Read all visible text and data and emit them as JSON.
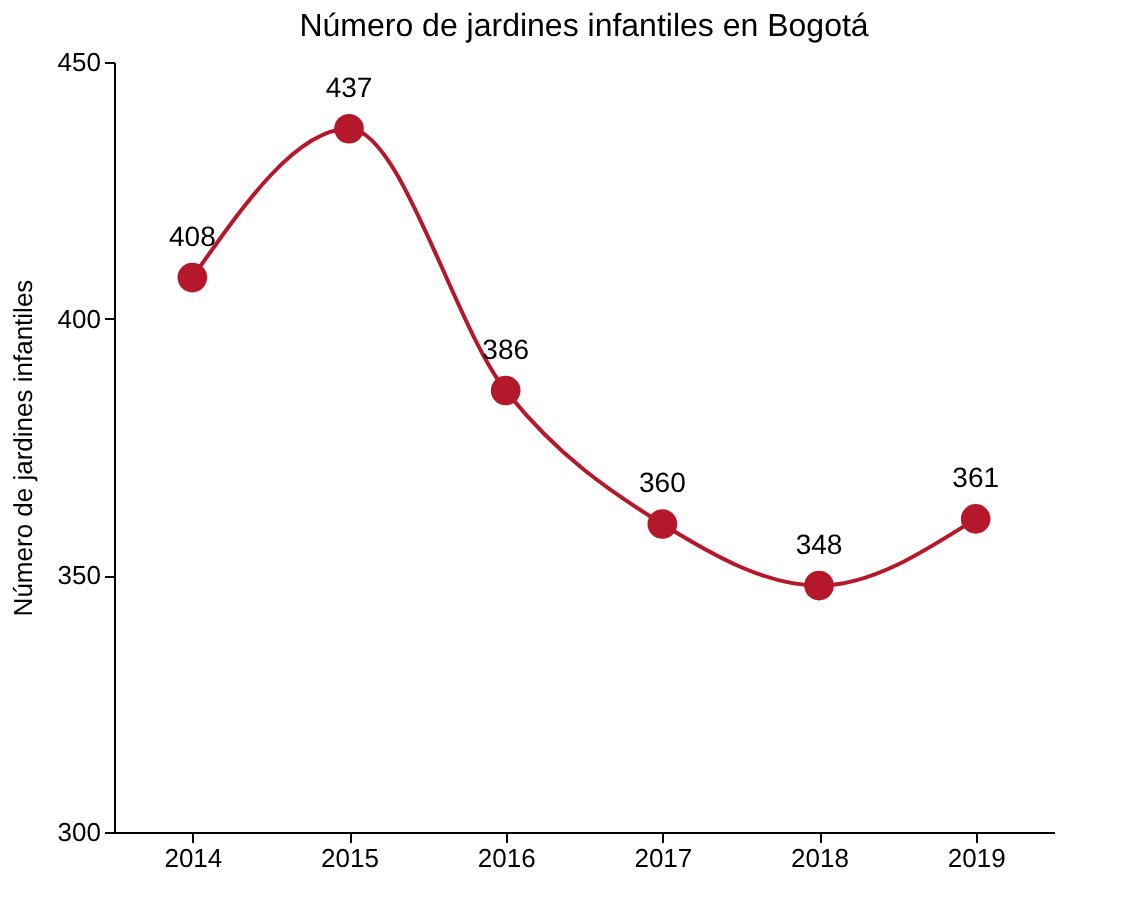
{
  "chart_data": {
    "type": "line",
    "title": "Número de jardines infantiles en Bogotá",
    "ylabel": "Número de jardines infantiles",
    "categories": [
      "2014",
      "2015",
      "2016",
      "2017",
      "2018",
      "2019"
    ],
    "series": [
      {
        "color": "#b5172b",
        "values": [
          408,
          437,
          386,
          360,
          348,
          361
        ]
      }
    ],
    "ylim": [
      300,
      450
    ],
    "yticks": [
      300,
      350,
      400,
      450
    ],
    "grid": false,
    "legend": false,
    "marker": "circle",
    "line_style": "solid",
    "data_labels": true
  }
}
